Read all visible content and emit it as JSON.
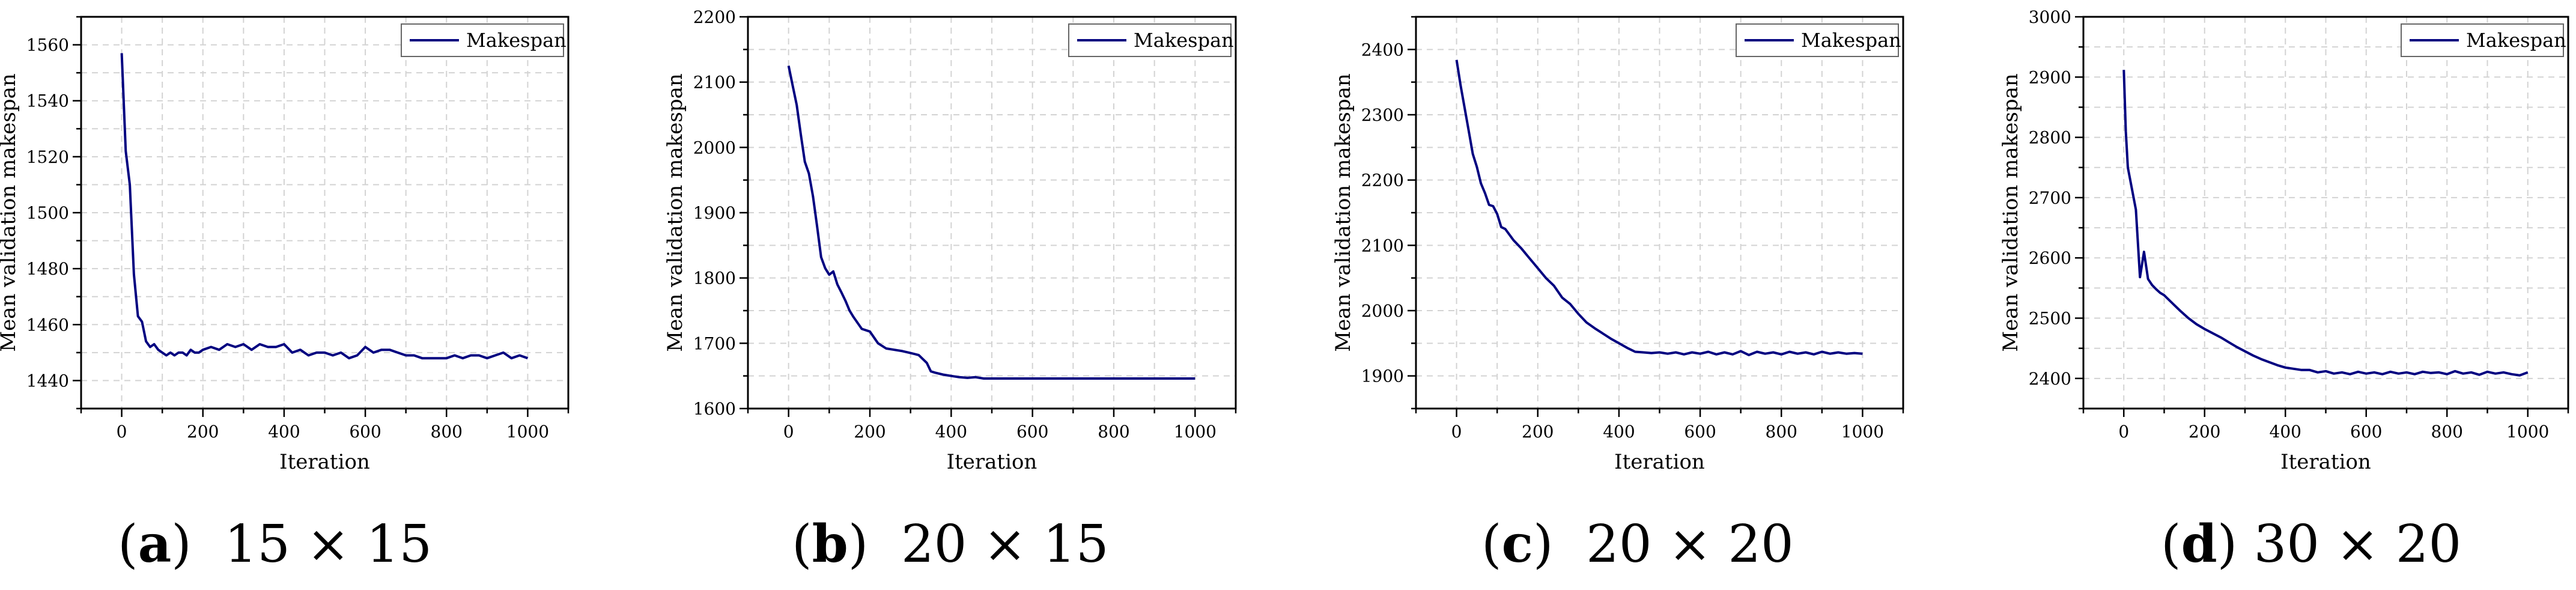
{
  "chart_data": [
    {
      "type": "line",
      "caption_letter": "a",
      "caption_size": "15 × 15",
      "xlabel": "Iteration",
      "ylabel": "Mean validation makespan",
      "xlim": [
        -100,
        1100
      ],
      "ylim": [
        1430,
        1570
      ],
      "xticks": [
        0,
        200,
        400,
        600,
        800,
        1000
      ],
      "yticks": [
        1440,
        1460,
        1480,
        1500,
        1520,
        1540,
        1560
      ],
      "legend": "top-right",
      "series": [
        {
          "name": "Makespan",
          "color": "#000080",
          "x": [
            0,
            10,
            20,
            30,
            40,
            50,
            60,
            70,
            80,
            90,
            100,
            110,
            120,
            130,
            140,
            150,
            160,
            170,
            180,
            190,
            200,
            220,
            240,
            260,
            280,
            300,
            320,
            340,
            360,
            380,
            400,
            420,
            440,
            460,
            480,
            500,
            520,
            540,
            560,
            580,
            600,
            620,
            640,
            660,
            680,
            700,
            720,
            740,
            760,
            780,
            800,
            820,
            840,
            860,
            880,
            900,
            920,
            940,
            960,
            980,
            1000
          ],
          "values": [
            1557,
            1522,
            1510,
            1478,
            1463,
            1461,
            1454,
            1452,
            1453,
            1451,
            1450,
            1449,
            1450,
            1449,
            1450,
            1450,
            1449,
            1451,
            1450,
            1450,
            1451,
            1452,
            1451,
            1453,
            1452,
            1453,
            1451,
            1453,
            1452,
            1452,
            1453,
            1450,
            1451,
            1449,
            1450,
            1450,
            1449,
            1450,
            1448,
            1449,
            1452,
            1450,
            1451,
            1451,
            1450,
            1449,
            1449,
            1448,
            1448,
            1448,
            1448,
            1449,
            1448,
            1449,
            1449,
            1448,
            1449,
            1450,
            1448,
            1449,
            1448
          ]
        }
      ]
    },
    {
      "type": "line",
      "caption_letter": "b",
      "caption_size": "20 × 15",
      "xlabel": "Iteration",
      "ylabel": "Mean validation makespan",
      "xlim": [
        -100,
        1100
      ],
      "ylim": [
        1600,
        2200
      ],
      "xticks": [
        0,
        200,
        400,
        600,
        800,
        1000
      ],
      "yticks": [
        1600,
        1700,
        1800,
        1900,
        2000,
        2100,
        2200
      ],
      "legend": "top-right",
      "series": [
        {
          "name": "Makespan",
          "color": "#000080",
          "x": [
            0,
            10,
            20,
            30,
            40,
            50,
            60,
            70,
            80,
            90,
            100,
            110,
            120,
            130,
            140,
            150,
            160,
            180,
            200,
            220,
            240,
            260,
            280,
            300,
            320,
            340,
            350,
            360,
            380,
            400,
            420,
            440,
            460,
            480,
            500,
            550,
            600,
            650,
            700,
            750,
            800,
            850,
            900,
            950,
            1000
          ],
          "values": [
            2125,
            2095,
            2065,
            2020,
            1978,
            1960,
            1925,
            1880,
            1832,
            1815,
            1805,
            1810,
            1790,
            1778,
            1765,
            1750,
            1740,
            1722,
            1718,
            1700,
            1692,
            1690,
            1688,
            1685,
            1682,
            1670,
            1657,
            1655,
            1652,
            1650,
            1648,
            1647,
            1648,
            1646,
            1646,
            1646,
            1646,
            1646,
            1646,
            1646,
            1646,
            1646,
            1646,
            1646,
            1646
          ]
        }
      ]
    },
    {
      "type": "line",
      "caption_letter": "c",
      "caption_size": "20 × 20",
      "xlabel": "Iteration",
      "ylabel": "Mean validation makespan",
      "xlim": [
        -100,
        1100
      ],
      "ylim": [
        1850,
        2450
      ],
      "xticks": [
        0,
        200,
        400,
        600,
        800,
        1000
      ],
      "yticks": [
        1900,
        2000,
        2100,
        2200,
        2300,
        2400
      ],
      "legend": "top-right",
      "series": [
        {
          "name": "Makespan",
          "color": "#000080",
          "x": [
            0,
            10,
            20,
            30,
            40,
            50,
            60,
            70,
            80,
            90,
            100,
            110,
            120,
            140,
            160,
            180,
            200,
            220,
            240,
            260,
            280,
            300,
            320,
            340,
            360,
            380,
            400,
            420,
            440,
            460,
            480,
            500,
            520,
            540,
            560,
            580,
            600,
            620,
            640,
            660,
            680,
            700,
            720,
            740,
            760,
            780,
            800,
            820,
            840,
            860,
            880,
            900,
            920,
            940,
            960,
            980,
            1000
          ],
          "values": [
            2384,
            2345,
            2310,
            2275,
            2240,
            2220,
            2195,
            2180,
            2162,
            2160,
            2148,
            2128,
            2125,
            2108,
            2095,
            2080,
            2065,
            2050,
            2038,
            2020,
            2010,
            1995,
            1982,
            1973,
            1965,
            1957,
            1950,
            1943,
            1937,
            1936,
            1935,
            1936,
            1934,
            1936,
            1933,
            1936,
            1934,
            1937,
            1933,
            1936,
            1933,
            1938,
            1932,
            1937,
            1934,
            1936,
            1933,
            1937,
            1934,
            1936,
            1933,
            1937,
            1934,
            1936,
            1934,
            1935,
            1934
          ]
        }
      ]
    },
    {
      "type": "line",
      "caption_letter": "d",
      "caption_size": "30 × 20",
      "xlabel": "Iteration",
      "ylabel": "Mean validation makespan",
      "xlim": [
        -100,
        1100
      ],
      "ylim": [
        2350,
        3000
      ],
      "xticks": [
        0,
        200,
        400,
        600,
        800,
        1000
      ],
      "yticks": [
        2400,
        2500,
        2600,
        2700,
        2800,
        2900,
        3000
      ],
      "legend": "top-right",
      "series": [
        {
          "name": "Makespan",
          "color": "#000080",
          "x": [
            0,
            5,
            10,
            20,
            30,
            40,
            50,
            60,
            70,
            80,
            90,
            100,
            120,
            140,
            160,
            180,
            200,
            220,
            240,
            260,
            280,
            300,
            320,
            340,
            360,
            380,
            400,
            420,
            440,
            460,
            480,
            500,
            520,
            540,
            560,
            580,
            600,
            620,
            640,
            660,
            680,
            700,
            720,
            740,
            760,
            780,
            800,
            820,
            840,
            860,
            880,
            900,
            920,
            940,
            960,
            980,
            1000
          ],
          "values": [
            2912,
            2810,
            2750,
            2715,
            2680,
            2568,
            2610,
            2565,
            2555,
            2548,
            2542,
            2538,
            2525,
            2512,
            2500,
            2490,
            2482,
            2475,
            2468,
            2460,
            2452,
            2445,
            2438,
            2432,
            2427,
            2422,
            2418,
            2416,
            2414,
            2414,
            2410,
            2412,
            2408,
            2410,
            2407,
            2411,
            2408,
            2410,
            2407,
            2411,
            2408,
            2410,
            2407,
            2411,
            2409,
            2410,
            2407,
            2412,
            2408,
            2410,
            2406,
            2411,
            2408,
            2410,
            2407,
            2405,
            2410
          ]
        }
      ]
    }
  ]
}
